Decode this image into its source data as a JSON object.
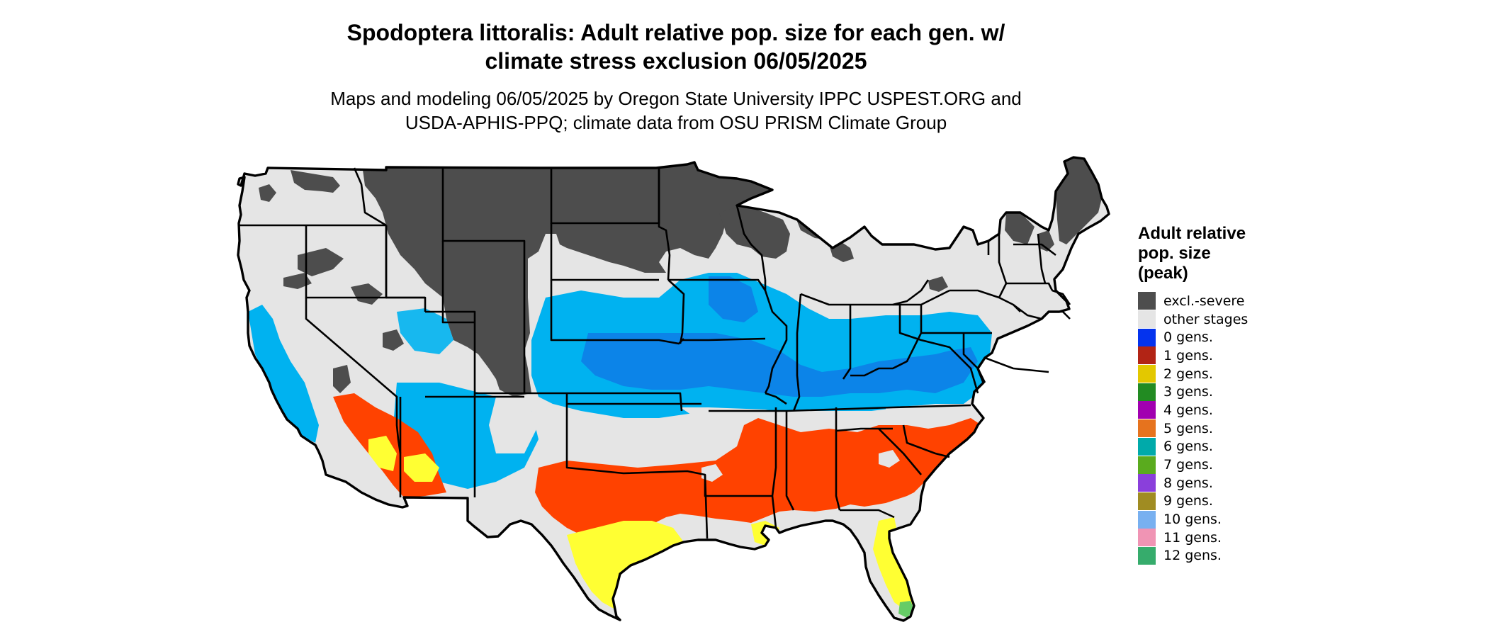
{
  "title_line1": "Spodoptera littoralis: Adult relative pop. size for each gen. w/",
  "title_line2": "climate stress exclusion 06/05/2025",
  "subtitle_line1": "Maps and modeling 06/05/2025 by Oregon State University IPPC USPEST.ORG and",
  "subtitle_line2": "USDA-APHIS-PPQ; climate data from OSU PRISM Climate Group",
  "legend": {
    "title_line1": "Adult relative",
    "title_line2": "pop. size",
    "title_line3": "(peak)",
    "items": [
      {
        "label": "excl.-severe",
        "color": "#4d4d4d"
      },
      {
        "label": "other stages",
        "color": "#e5e5e5"
      },
      {
        "label": "0 gens.",
        "color": "#0433ee"
      },
      {
        "label": "1 gens.",
        "color": "#b22415"
      },
      {
        "label": "2 gens.",
        "color": "#e3c800"
      },
      {
        "label": "3 gens.",
        "color": "#228b22"
      },
      {
        "label": "4 gens.",
        "color": "#a100b0"
      },
      {
        "label": "5 gens.",
        "color": "#e6731e"
      },
      {
        "label": "6 gens.",
        "color": "#00aaaa"
      },
      {
        "label": "7 gens.",
        "color": "#5aab1e"
      },
      {
        "label": "8 gens.",
        "color": "#8a3fdb"
      },
      {
        "label": "9 gens.",
        "color": "#a08c22"
      },
      {
        "label": "10 gens.",
        "color": "#78b0f0"
      },
      {
        "label": "11 gens.",
        "color": "#f094b4"
      },
      {
        "label": "12 gens.",
        "color": "#36ac6c"
      }
    ]
  },
  "map_colors": {
    "excluded": "#4d4d4d",
    "other": "#e5e5e5",
    "light_blue": "#00b2f0",
    "mid_blue": "#0c84e8",
    "orange_red": "#ff4200",
    "yellow": "#ffff33",
    "green": "#66cc66",
    "border": "#000000"
  }
}
